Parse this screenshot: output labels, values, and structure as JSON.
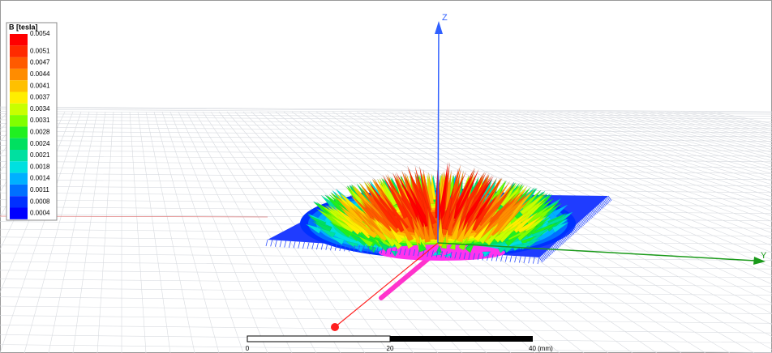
{
  "legend": {
    "title": "B [tesla]",
    "entries": [
      {
        "label": "0.0054",
        "color": "#ff0000"
      },
      {
        "label": "0.0051",
        "color": "#ff2a00"
      },
      {
        "label": "0.0047",
        "color": "#ff5a00"
      },
      {
        "label": "0.0044",
        "color": "#ff8c00"
      },
      {
        "label": "0.0041",
        "color": "#ffc000"
      },
      {
        "label": "0.0037",
        "color": "#ffee00"
      },
      {
        "label": "0.0034",
        "color": "#c8ff00"
      },
      {
        "label": "0.0031",
        "color": "#80ff00"
      },
      {
        "label": "0.0028",
        "color": "#20f020"
      },
      {
        "label": "0.0024",
        "color": "#00e060"
      },
      {
        "label": "0.0021",
        "color": "#00e0a0"
      },
      {
        "label": "0.0018",
        "color": "#00e0e0"
      },
      {
        "label": "0.0014",
        "color": "#00b0ff"
      },
      {
        "label": "0.0011",
        "color": "#0070ff"
      },
      {
        "label": "0.0008",
        "color": "#0030ff"
      },
      {
        "label": "0.0004",
        "color": "#0000ff"
      }
    ]
  },
  "axes": {
    "z": "Z",
    "y": "Y"
  },
  "scale_bar": {
    "labels": [
      "0",
      "20",
      "40 (mm)"
    ]
  }
}
